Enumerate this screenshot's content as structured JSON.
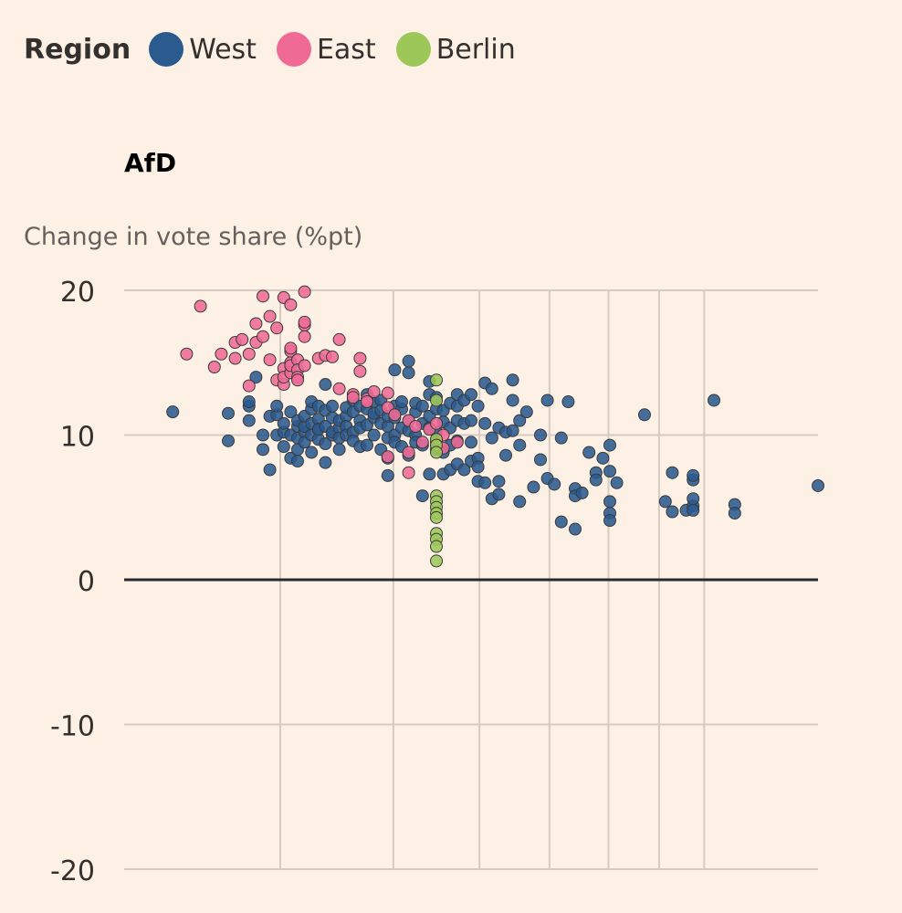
{
  "legend": {
    "title": "Region",
    "items": [
      {
        "label": "West",
        "color": "#2b5a8f"
      },
      {
        "label": "East",
        "color": "#f06a96"
      },
      {
        "label": "Berlin",
        "color": "#9ec75a"
      }
    ]
  },
  "chart_data": {
    "type": "scatter",
    "title": "AfD",
    "ylabel": "Change in vote share (%pt)",
    "ylim": [
      -20,
      20
    ],
    "yticks": [
      "20",
      "10",
      "0",
      "-10",
      "-20"
    ],
    "xlim": [
      0,
      100
    ],
    "x_axis_labels": "not shown",
    "grid": true,
    "legend_position": "top-left",
    "series": [
      {
        "name": "West",
        "color": "#2b5a8f",
        "points": [
          [
            7,
            11.6
          ],
          [
            15,
            9.6
          ],
          [
            15,
            11.5
          ],
          [
            18,
            11
          ],
          [
            18,
            12
          ],
          [
            18,
            12.3
          ],
          [
            19,
            14
          ],
          [
            20,
            10
          ],
          [
            20,
            9
          ],
          [
            21,
            7.6
          ],
          [
            21,
            11.3
          ],
          [
            22,
            10
          ],
          [
            22,
            11.4
          ],
          [
            22,
            12
          ],
          [
            23,
            10.2
          ],
          [
            23,
            9.2
          ],
          [
            23,
            10.8
          ],
          [
            24,
            10
          ],
          [
            24,
            11.6
          ],
          [
            24,
            8.4
          ],
          [
            25,
            9.8
          ],
          [
            25,
            10.6
          ],
          [
            25,
            11
          ],
          [
            25,
            9
          ],
          [
            25,
            8.2
          ],
          [
            26,
            10.2
          ],
          [
            26,
            10.6
          ],
          [
            26,
            11.3
          ],
          [
            26,
            9.5
          ],
          [
            27,
            10
          ],
          [
            27,
            10.8
          ],
          [
            27,
            8.8
          ],
          [
            27,
            11.8
          ],
          [
            27,
            12.3
          ],
          [
            28,
            9.7
          ],
          [
            28,
            10.4
          ],
          [
            28,
            11.1
          ],
          [
            28,
            10.4
          ],
          [
            28,
            12
          ],
          [
            29,
            10.6
          ],
          [
            29,
            11.7
          ],
          [
            29,
            9.4
          ],
          [
            29,
            13.5
          ],
          [
            29,
            8.1
          ],
          [
            30,
            10
          ],
          [
            30,
            11.2
          ],
          [
            30,
            10.2
          ],
          [
            30,
            12
          ],
          [
            31,
            10.5
          ],
          [
            31,
            11
          ],
          [
            31,
            9.8
          ],
          [
            31,
            9
          ],
          [
            32,
            11.3
          ],
          [
            32,
            10.6
          ],
          [
            32,
            11.9
          ],
          [
            32,
            10
          ],
          [
            33,
            11.6
          ],
          [
            33,
            10.2
          ],
          [
            33,
            9.6
          ],
          [
            33,
            12.4
          ],
          [
            34,
            11
          ],
          [
            34,
            12
          ],
          [
            34,
            10.5
          ],
          [
            34,
            9.2
          ],
          [
            35,
            11.8
          ],
          [
            35,
            10.7
          ],
          [
            35,
            12.8
          ],
          [
            35,
            9.3
          ],
          [
            36,
            11.2
          ],
          [
            36,
            10
          ],
          [
            36,
            12.3
          ],
          [
            36,
            11.5
          ],
          [
            37,
            10.8
          ],
          [
            37,
            12.4
          ],
          [
            37,
            9
          ],
          [
            37,
            11.7
          ],
          [
            38,
            10.6
          ],
          [
            38,
            11.3
          ],
          [
            38,
            9.8
          ],
          [
            38,
            8.4
          ],
          [
            38,
            7.2
          ],
          [
            39,
            11.2
          ],
          [
            39,
            12
          ],
          [
            39,
            10
          ],
          [
            39,
            9.5
          ],
          [
            39,
            14.5
          ],
          [
            40,
            11.8
          ],
          [
            40,
            10.5
          ],
          [
            40,
            12.3
          ],
          [
            40,
            9.2
          ],
          [
            41,
            11
          ],
          [
            41,
            10.3
          ],
          [
            41,
            14.3
          ],
          [
            41,
            15.1
          ],
          [
            41,
            8.6
          ],
          [
            42,
            11.6
          ],
          [
            42,
            10
          ],
          [
            42,
            12.2
          ],
          [
            42,
            9.5
          ],
          [
            43,
            10.8
          ],
          [
            43,
            12
          ],
          [
            43,
            9.3
          ],
          [
            43,
            5.8
          ],
          [
            44,
            12.8
          ],
          [
            44,
            11.3
          ],
          [
            44,
            10.5
          ],
          [
            44,
            7.3
          ],
          [
            44,
            13.7
          ],
          [
            45,
            11.8
          ],
          [
            45,
            10.2
          ],
          [
            45,
            9
          ],
          [
            45,
            12.6
          ],
          [
            46,
            11.7
          ],
          [
            46,
            10.9
          ],
          [
            46,
            7.3
          ],
          [
            46,
            8.8
          ],
          [
            47,
            12.2
          ],
          [
            47,
            10.5
          ],
          [
            47,
            9.3
          ],
          [
            47,
            7.6
          ],
          [
            48,
            12
          ],
          [
            48,
            11
          ],
          [
            48,
            9.6
          ],
          [
            48,
            12.8
          ],
          [
            48,
            8
          ],
          [
            49,
            12.4
          ],
          [
            49,
            10.8
          ],
          [
            49,
            7.6
          ],
          [
            50,
            12.8
          ],
          [
            50,
            11
          ],
          [
            50,
            9.5
          ],
          [
            50,
            8.2
          ],
          [
            51,
            12
          ],
          [
            51,
            8.4
          ],
          [
            51,
            7.8
          ],
          [
            51,
            6.8
          ],
          [
            52,
            10.8
          ],
          [
            52,
            13.6
          ],
          [
            52,
            6.7
          ],
          [
            53,
            13.2
          ],
          [
            53,
            9.8
          ],
          [
            53,
            5.6
          ],
          [
            54,
            6.8
          ],
          [
            54,
            10.5
          ],
          [
            54,
            5.9
          ],
          [
            55,
            8.6
          ],
          [
            55,
            10.2
          ],
          [
            56,
            10.3
          ],
          [
            56,
            13.8
          ],
          [
            56,
            12.4
          ],
          [
            57,
            9.3
          ],
          [
            57,
            11
          ],
          [
            57,
            5.4
          ],
          [
            58,
            11.6
          ],
          [
            59,
            6.4
          ],
          [
            60,
            10
          ],
          [
            60,
            8.3
          ],
          [
            61,
            12.4
          ],
          [
            61,
            7
          ],
          [
            62,
            6.6
          ],
          [
            63,
            4
          ],
          [
            63,
            9.8
          ],
          [
            64,
            12.3
          ],
          [
            65,
            6.3
          ],
          [
            65,
            5.8
          ],
          [
            65,
            3.5
          ],
          [
            66,
            6
          ],
          [
            67,
            8.8
          ],
          [
            68,
            7.4
          ],
          [
            68,
            6.9
          ],
          [
            69,
            8.4
          ],
          [
            70,
            9.3
          ],
          [
            70,
            7.5
          ],
          [
            70,
            5.4
          ],
          [
            70,
            4.6
          ],
          [
            70,
            4.1
          ],
          [
            71,
            6.7
          ],
          [
            75,
            11.4
          ],
          [
            78,
            5.4
          ],
          [
            79,
            7.4
          ],
          [
            79,
            4.7
          ],
          [
            81,
            4.8
          ],
          [
            82,
            5.1
          ],
          [
            82,
            6.9
          ],
          [
            82,
            4.8
          ],
          [
            82,
            7.2
          ],
          [
            82,
            5.6
          ],
          [
            85,
            12.4
          ],
          [
            88,
            5.2
          ],
          [
            88,
            4.6
          ],
          [
            100,
            6.5
          ]
        ]
      },
      {
        "name": "East",
        "color": "#f06a96",
        "points": [
          [
            9,
            15.6
          ],
          [
            11,
            18.9
          ],
          [
            13,
            14.7
          ],
          [
            14,
            15.6
          ],
          [
            16,
            16.4
          ],
          [
            16,
            15.3
          ],
          [
            17,
            16.6
          ],
          [
            18,
            13.4
          ],
          [
            18,
            15.6
          ],
          [
            19,
            16.4
          ],
          [
            19,
            17.7
          ],
          [
            20,
            19.6
          ],
          [
            20,
            16.8
          ],
          [
            21,
            15.2
          ],
          [
            21,
            18.2
          ],
          [
            22,
            17.4
          ],
          [
            22,
            13.8
          ],
          [
            23,
            14.6
          ],
          [
            23,
            13.5
          ],
          [
            23,
            14
          ],
          [
            23,
            19.5
          ],
          [
            24,
            19
          ],
          [
            24,
            15
          ],
          [
            24,
            14.3
          ],
          [
            24,
            14.8
          ],
          [
            24,
            15.8
          ],
          [
            24,
            16
          ],
          [
            25,
            15.2
          ],
          [
            25,
            14.5
          ],
          [
            25,
            14
          ],
          [
            25,
            13.8
          ],
          [
            26,
            17.6
          ],
          [
            26,
            17.8
          ],
          [
            26,
            19.9
          ],
          [
            26,
            16.8
          ],
          [
            26,
            14.8
          ],
          [
            28,
            15.3
          ],
          [
            29,
            15.5
          ],
          [
            30,
            15.4
          ],
          [
            31,
            16.6
          ],
          [
            31,
            13.2
          ],
          [
            33,
            12.8
          ],
          [
            33,
            12.6
          ],
          [
            34,
            14.4
          ],
          [
            34,
            15.3
          ],
          [
            35,
            12.5
          ],
          [
            35,
            12.3
          ],
          [
            36,
            13
          ],
          [
            38,
            12.9
          ],
          [
            38,
            11.9
          ],
          [
            39,
            11.4
          ],
          [
            41,
            11
          ],
          [
            42,
            10.6
          ],
          [
            43,
            9.5
          ],
          [
            44,
            10.4
          ],
          [
            45,
            9.5
          ],
          [
            46,
            10
          ],
          [
            46,
            9.1
          ],
          [
            48,
            9.5
          ],
          [
            41,
            8.8
          ],
          [
            38,
            8.5
          ],
          [
            41,
            7.4
          ],
          [
            45,
            10.8
          ]
        ]
      },
      {
        "name": "Berlin",
        "color": "#9ec75a",
        "points": [
          [
            45,
            13.8
          ],
          [
            45,
            12.4
          ],
          [
            45,
            9.7
          ],
          [
            45,
            9.3
          ],
          [
            45,
            8.8
          ],
          [
            45,
            5.8
          ],
          [
            45,
            5.4
          ],
          [
            45,
            5
          ],
          [
            45,
            4.6
          ],
          [
            45,
            4.3
          ],
          [
            45,
            3.2
          ],
          [
            45,
            2.8
          ],
          [
            45,
            2.3
          ],
          [
            45,
            1.3
          ]
        ]
      }
    ]
  }
}
